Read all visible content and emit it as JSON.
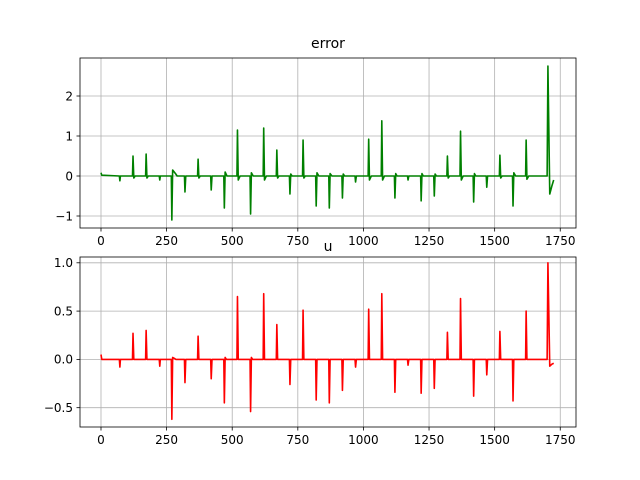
{
  "chart_data": [
    {
      "type": "line",
      "title": "error",
      "xlabel": "",
      "ylabel": "",
      "xlim": [
        -80,
        1810
      ],
      "ylim": [
        -1.3,
        2.95
      ],
      "xticks": [
        0,
        250,
        500,
        750,
        1000,
        1250,
        1500,
        1750
      ],
      "yticks": [
        -1,
        0,
        1,
        2
      ],
      "grid": true,
      "color": "#008000",
      "series": [
        {
          "values": [
            [
              0,
              0.08
            ],
            [
              3,
              0.02
            ],
            [
              70,
              0.0
            ],
            [
              72,
              -0.12
            ],
            [
              74,
              0.0
            ],
            [
              120,
              0.0
            ],
            [
              122,
              0.5
            ],
            [
              125,
              -0.05
            ],
            [
              130,
              0.0
            ],
            [
              170,
              0.0
            ],
            [
              172,
              0.55
            ],
            [
              175,
              -0.05
            ],
            [
              180,
              0.0
            ],
            [
              222,
              0.0
            ],
            [
              224,
              -0.1
            ],
            [
              226,
              0.0
            ],
            [
              268,
              0.0
            ],
            [
              270,
              -1.1
            ],
            [
              273,
              0.15
            ],
            [
              285,
              0.05
            ],
            [
              290,
              0.0
            ],
            [
              318,
              0.0
            ],
            [
              320,
              -0.4
            ],
            [
              323,
              0.0
            ],
            [
              368,
              0.0
            ],
            [
              370,
              0.42
            ],
            [
              373,
              -0.05
            ],
            [
              378,
              0.0
            ],
            [
              418,
              0.0
            ],
            [
              420,
              -0.35
            ],
            [
              423,
              0.0
            ],
            [
              468,
              0.0
            ],
            [
              470,
              -0.8
            ],
            [
              473,
              0.1
            ],
            [
              480,
              0.0
            ],
            [
              518,
              0.0
            ],
            [
              520,
              1.15
            ],
            [
              523,
              -0.1
            ],
            [
              530,
              0.0
            ],
            [
              568,
              0.0
            ],
            [
              570,
              -0.95
            ],
            [
              573,
              0.08
            ],
            [
              580,
              0.0
            ],
            [
              618,
              0.0
            ],
            [
              620,
              1.2
            ],
            [
              623,
              -0.1
            ],
            [
              630,
              0.0
            ],
            [
              668,
              0.0
            ],
            [
              670,
              0.65
            ],
            [
              673,
              -0.05
            ],
            [
              678,
              0.0
            ],
            [
              718,
              0.0
            ],
            [
              720,
              -0.45
            ],
            [
              723,
              0.05
            ],
            [
              728,
              0.0
            ],
            [
              768,
              0.0
            ],
            [
              770,
              0.9
            ],
            [
              773,
              -0.05
            ],
            [
              778,
              0.0
            ],
            [
              818,
              0.0
            ],
            [
              820,
              -0.75
            ],
            [
              823,
              0.08
            ],
            [
              830,
              0.0
            ],
            [
              868,
              0.0
            ],
            [
              870,
              -0.8
            ],
            [
              873,
              0.06
            ],
            [
              880,
              0.0
            ],
            [
              918,
              0.0
            ],
            [
              920,
              -0.55
            ],
            [
              923,
              0.05
            ],
            [
              928,
              0.0
            ],
            [
              968,
              0.0
            ],
            [
              970,
              -0.15
            ],
            [
              973,
              0.0
            ],
            [
              1018,
              0.0
            ],
            [
              1020,
              0.92
            ],
            [
              1023,
              -0.1
            ],
            [
              1030,
              0.0
            ],
            [
              1068,
              0.0
            ],
            [
              1070,
              1.38
            ],
            [
              1073,
              -0.1
            ],
            [
              1080,
              0.0
            ],
            [
              1118,
              0.0
            ],
            [
              1120,
              -0.55
            ],
            [
              1123,
              0.06
            ],
            [
              1128,
              0.0
            ],
            [
              1168,
              0.0
            ],
            [
              1170,
              -0.1
            ],
            [
              1173,
              0.0
            ],
            [
              1218,
              0.0
            ],
            [
              1220,
              -0.62
            ],
            [
              1223,
              0.06
            ],
            [
              1228,
              0.0
            ],
            [
              1268,
              0.0
            ],
            [
              1270,
              -0.5
            ],
            [
              1273,
              0.05
            ],
            [
              1278,
              0.0
            ],
            [
              1318,
              0.0
            ],
            [
              1320,
              0.5
            ],
            [
              1323,
              -0.05
            ],
            [
              1328,
              0.0
            ],
            [
              1368,
              0.0
            ],
            [
              1370,
              1.12
            ],
            [
              1373,
              -0.1
            ],
            [
              1380,
              0.0
            ],
            [
              1418,
              0.0
            ],
            [
              1420,
              -0.65
            ],
            [
              1423,
              0.06
            ],
            [
              1428,
              0.0
            ],
            [
              1468,
              0.0
            ],
            [
              1470,
              -0.28
            ],
            [
              1473,
              0.0
            ],
            [
              1518,
              0.0
            ],
            [
              1520,
              0.52
            ],
            [
              1523,
              -0.05
            ],
            [
              1528,
              0.0
            ],
            [
              1568,
              0.0
            ],
            [
              1570,
              -0.75
            ],
            [
              1573,
              0.08
            ],
            [
              1580,
              0.0
            ],
            [
              1618,
              0.0
            ],
            [
              1620,
              0.9
            ],
            [
              1623,
              -0.08
            ],
            [
              1630,
              0.0
            ],
            [
              1660,
              0.0
            ],
            [
              1700,
              0.0
            ],
            [
              1703,
              2.75
            ],
            [
              1710,
              -0.45
            ],
            [
              1718,
              -0.25
            ],
            [
              1725,
              -0.1
            ]
          ]
        }
      ]
    },
    {
      "type": "line",
      "title": "u",
      "xlabel": "",
      "ylabel": "",
      "xlim": [
        -80,
        1810
      ],
      "ylim": [
        -0.7,
        1.06
      ],
      "xticks": [
        0,
        250,
        500,
        750,
        1000,
        1250,
        1500,
        1750
      ],
      "yticks": [
        -0.5,
        0.0,
        0.5,
        1.0
      ],
      "grid": true,
      "color": "#ff0000",
      "series": [
        {
          "values": [
            [
              0,
              0.05
            ],
            [
              3,
              0.0
            ],
            [
              70,
              0.0
            ],
            [
              72,
              -0.08
            ],
            [
              74,
              0.0
            ],
            [
              120,
              0.0
            ],
            [
              122,
              0.27
            ],
            [
              125,
              0.0
            ],
            [
              170,
              0.0
            ],
            [
              172,
              0.3
            ],
            [
              175,
              0.0
            ],
            [
              222,
              0.0
            ],
            [
              224,
              -0.07
            ],
            [
              226,
              0.0
            ],
            [
              268,
              0.0
            ],
            [
              270,
              -0.62
            ],
            [
              273,
              0.02
            ],
            [
              280,
              0.01
            ],
            [
              285,
              0.0
            ],
            [
              318,
              0.0
            ],
            [
              320,
              -0.24
            ],
            [
              323,
              0.0
            ],
            [
              368,
              0.0
            ],
            [
              370,
              0.24
            ],
            [
              373,
              0.0
            ],
            [
              418,
              0.0
            ],
            [
              420,
              -0.2
            ],
            [
              423,
              0.0
            ],
            [
              468,
              0.0
            ],
            [
              470,
              -0.45
            ],
            [
              473,
              0.02
            ],
            [
              478,
              0.0
            ],
            [
              518,
              0.0
            ],
            [
              520,
              0.65
            ],
            [
              523,
              0.0
            ],
            [
              568,
              0.0
            ],
            [
              570,
              -0.54
            ],
            [
              573,
              0.02
            ],
            [
              578,
              0.0
            ],
            [
              618,
              0.0
            ],
            [
              620,
              0.68
            ],
            [
              623,
              0.0
            ],
            [
              668,
              0.0
            ],
            [
              670,
              0.36
            ],
            [
              673,
              0.0
            ],
            [
              718,
              0.0
            ],
            [
              720,
              -0.26
            ],
            [
              723,
              0.0
            ],
            [
              768,
              0.0
            ],
            [
              770,
              0.51
            ],
            [
              773,
              0.0
            ],
            [
              818,
              0.0
            ],
            [
              820,
              -0.42
            ],
            [
              823,
              0.0
            ],
            [
              868,
              0.0
            ],
            [
              870,
              -0.45
            ],
            [
              873,
              0.0
            ],
            [
              918,
              0.0
            ],
            [
              920,
              -0.32
            ],
            [
              923,
              0.0
            ],
            [
              968,
              0.0
            ],
            [
              970,
              -0.08
            ],
            [
              973,
              0.0
            ],
            [
              1018,
              0.0
            ],
            [
              1020,
              0.52
            ],
            [
              1023,
              0.0
            ],
            [
              1068,
              0.0
            ],
            [
              1070,
              0.68
            ],
            [
              1073,
              0.0
            ],
            [
              1118,
              0.0
            ],
            [
              1120,
              -0.34
            ],
            [
              1123,
              0.0
            ],
            [
              1168,
              0.0
            ],
            [
              1170,
              -0.06
            ],
            [
              1173,
              0.0
            ],
            [
              1218,
              0.0
            ],
            [
              1220,
              -0.35
            ],
            [
              1223,
              0.0
            ],
            [
              1268,
              0.0
            ],
            [
              1270,
              -0.3
            ],
            [
              1273,
              0.0
            ],
            [
              1318,
              0.0
            ],
            [
              1320,
              0.28
            ],
            [
              1323,
              0.0
            ],
            [
              1368,
              0.0
            ],
            [
              1370,
              0.63
            ],
            [
              1373,
              0.0
            ],
            [
              1418,
              0.0
            ],
            [
              1420,
              -0.38
            ],
            [
              1423,
              0.0
            ],
            [
              1468,
              0.0
            ],
            [
              1470,
              -0.16
            ],
            [
              1473,
              0.0
            ],
            [
              1518,
              0.0
            ],
            [
              1520,
              0.29
            ],
            [
              1523,
              0.0
            ],
            [
              1568,
              0.0
            ],
            [
              1570,
              -0.43
            ],
            [
              1573,
              0.0
            ],
            [
              1618,
              0.0
            ],
            [
              1620,
              0.5
            ],
            [
              1623,
              0.0
            ],
            [
              1660,
              0.0
            ],
            [
              1700,
              0.0
            ],
            [
              1703,
              1.0
            ],
            [
              1710,
              -0.07
            ],
            [
              1718,
              -0.05
            ],
            [
              1725,
              -0.04
            ]
          ]
        }
      ]
    }
  ]
}
